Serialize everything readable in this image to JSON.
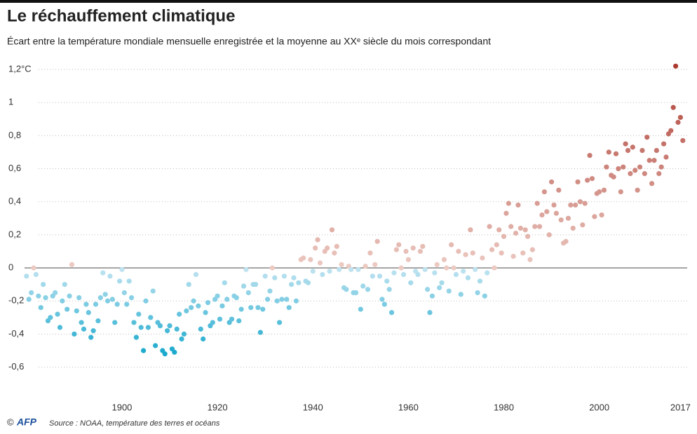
{
  "chart_data": {
    "type": "scatter",
    "title": "Le réchauffement climatique",
    "subtitle": "Écart entre la température mondiale mensuelle enregistrée et la moyenne au XXᵉ siècle du mois correspondant",
    "copyright": "©",
    "logo": "AFP",
    "source": "Source : NOAA, température des terres et océans",
    "xlim": [
      1879,
      2019
    ],
    "ylim": [
      -0.75,
      1.27
    ],
    "xticks": [
      1900,
      1920,
      1940,
      1960,
      1980,
      2000,
      2017
    ],
    "yticks": [
      {
        "value": -0.6,
        "label": "-0,6"
      },
      {
        "value": -0.4,
        "label": "-0,4"
      },
      {
        "value": -0.2,
        "label": "-0,2"
      },
      0,
      {
        "value": 0.2,
        "label": "0,2"
      },
      {
        "value": 0.4,
        "label": "0,4"
      },
      {
        "value": 0.6,
        "label": "0,6"
      },
      {
        "value": 0.8,
        "label": "0,8"
      },
      1,
      {
        "value": 1.2,
        "label": "1,2°C"
      }
    ],
    "grid": true,
    "colors": {
      "cold": "#00a0c8",
      "cool": "#c2e4f1",
      "warm": "#edcbc3",
      "hot": "#a8352b"
    },
    "x": [
      1880,
      1880.5,
      1881,
      1881.5,
      1882,
      1882.5,
      1883,
      1883.5,
      1884,
      1884.5,
      1885,
      1885.5,
      1886,
      1886.5,
      1887,
      1887.5,
      1888,
      1888.5,
      1889,
      1889.5,
      1890,
      1890.5,
      1891,
      1891.5,
      1892,
      1892.5,
      1893,
      1893.5,
      1894,
      1894.5,
      1895,
      1895.5,
      1896,
      1896.5,
      1897,
      1897.5,
      1898,
      1898.5,
      1899,
      1899.5,
      1900,
      1900.5,
      1901,
      1901.5,
      1902,
      1902.5,
      1903,
      1903.5,
      1904,
      1904.5,
      1905,
      1905.5,
      1906,
      1906.5,
      1907,
      1907.5,
      1908,
      1908.5,
      1909,
      1909.5,
      1910,
      1910.5,
      1911,
      1911.5,
      1912,
      1912.5,
      1913,
      1913.5,
      1914,
      1914.5,
      1915,
      1915.5,
      1916,
      1916.5,
      1917,
      1917.5,
      1918,
      1918.5,
      1919,
      1919.5,
      1920,
      1920.5,
      1921,
      1921.5,
      1922,
      1922.5,
      1923,
      1923.5,
      1924,
      1924.5,
      1925,
      1925.5,
      1926,
      1926.5,
      1927,
      1927.5,
      1928,
      1928.5,
      1929,
      1929.5,
      1930,
      1930.5,
      1931,
      1931.5,
      1932,
      1932.5,
      1933,
      1933.5,
      1934,
      1934.5,
      1935,
      1935.5,
      1936,
      1936.5,
      1937,
      1937.5,
      1938,
      1938.5,
      1939,
      1939.5,
      1940,
      1940.5,
      1941,
      1941.5,
      1942,
      1942.5,
      1943,
      1943.5,
      1944,
      1944.5,
      1945,
      1945.5,
      1946,
      1946.5,
      1947,
      1947.5,
      1948,
      1948.5,
      1949,
      1949.5,
      1950,
      1950.5,
      1951,
      1951.5,
      1952,
      1952.5,
      1953,
      1953.5,
      1954,
      1954.5,
      1955,
      1955.5,
      1956,
      1956.5,
      1957,
      1957.5,
      1958,
      1958.5,
      1959,
      1959.5,
      1960,
      1960.5,
      1961,
      1961.5,
      1962,
      1962.5,
      1963,
      1963.5,
      1964,
      1964.5,
      1965,
      1965.5,
      1966,
      1966.5,
      1967,
      1967.5,
      1968,
      1968.5,
      1969,
      1969.5,
      1970,
      1970.5,
      1971,
      1971.5,
      1972,
      1972.5,
      1973,
      1973.5,
      1974,
      1974.5,
      1975,
      1975.5,
      1976,
      1976.5,
      1977,
      1977.5,
      1978,
      1978.5,
      1979,
      1979.5,
      1980,
      1980.5,
      1981,
      1981.5,
      1982,
      1982.5,
      1983,
      1983.5,
      1984,
      1984.5,
      1985,
      1985.5,
      1986,
      1986.5,
      1987,
      1987.5,
      1988,
      1988.5,
      1989,
      1989.5,
      1990,
      1990.5,
      1991,
      1991.5,
      1992,
      1992.5,
      1993,
      1993.5,
      1994,
      1994.5,
      1995,
      1995.5,
      1996,
      1996.5,
      1997,
      1997.5,
      1998,
      1998.5,
      1999,
      1999.5,
      2000,
      2000.5,
      2001,
      2001.5,
      2002,
      2002.5,
      2003,
      2003.5,
      2004,
      2004.5,
      2005,
      2005.5,
      2006,
      2006.5,
      2007,
      2007.5,
      2008,
      2008.5,
      2009,
      2009.5,
      2010,
      2010.5,
      2011,
      2011.5,
      2012,
      2012.5,
      2013,
      2013.5,
      2014,
      2014.5,
      2015,
      2015.5,
      2016,
      2016.5,
      2017,
      2017.5
    ],
    "values": [
      -0.05,
      -0.19,
      -0.15,
      0.0,
      -0.04,
      -0.17,
      -0.24,
      -0.1,
      -0.18,
      -0.32,
      -0.3,
      -0.17,
      -0.15,
      -0.28,
      -0.36,
      -0.2,
      -0.1,
      -0.25,
      -0.17,
      0.02,
      -0.4,
      -0.26,
      -0.18,
      -0.33,
      -0.37,
      -0.22,
      -0.27,
      -0.42,
      -0.38,
      -0.22,
      -0.32,
      -0.18,
      -0.03,
      -0.16,
      -0.2,
      -0.05,
      -0.19,
      -0.33,
      -0.22,
      -0.08,
      -0.01,
      -0.15,
      -0.22,
      -0.08,
      -0.18,
      -0.33,
      -0.42,
      -0.28,
      -0.36,
      -0.5,
      -0.2,
      -0.36,
      -0.3,
      -0.14,
      -0.47,
      -0.33,
      -0.35,
      -0.5,
      -0.52,
      -0.38,
      -0.35,
      -0.49,
      -0.51,
      -0.37,
      -0.28,
      -0.43,
      -0.4,
      -0.26,
      -0.1,
      -0.24,
      -0.2,
      -0.04,
      -0.23,
      -0.37,
      -0.43,
      -0.27,
      -0.21,
      -0.35,
      -0.33,
      -0.19,
      -0.17,
      -0.31,
      -0.23,
      -0.09,
      -0.19,
      -0.33,
      -0.31,
      -0.17,
      -0.18,
      -0.32,
      -0.25,
      -0.11,
      -0.01,
      -0.15,
      -0.24,
      -0.1,
      -0.1,
      -0.24,
      -0.39,
      -0.25,
      -0.05,
      -0.19,
      -0.14,
      0.0,
      -0.06,
      -0.2,
      -0.33,
      -0.19,
      -0.05,
      -0.19,
      -0.24,
      -0.1,
      -0.06,
      -0.2,
      -0.09,
      0.05,
      0.06,
      -0.08,
      -0.09,
      0.05,
      -0.02,
      0.12,
      0.17,
      0.03,
      -0.04,
      0.1,
      0.12,
      -0.02,
      0.23,
      0.09,
      0.13,
      -0.01,
      0.02,
      -0.12,
      -0.13,
      0.01,
      -0.01,
      -0.15,
      -0.15,
      -0.01,
      -0.25,
      -0.11,
      0.01,
      -0.13,
      0.09,
      -0.05,
      0.02,
      0.16,
      -0.05,
      -0.19,
      -0.22,
      -0.08,
      -0.13,
      -0.27,
      -0.03,
      0.11,
      0.14,
      0.0,
      -0.04,
      0.1,
      0.05,
      -0.09,
      0.12,
      -0.02,
      -0.04,
      0.1,
      0.13,
      -0.01,
      -0.13,
      -0.27,
      -0.17,
      -0.03,
      0.02,
      -0.12,
      -0.09,
      0.05,
      0.0,
      -0.14,
      0.14,
      0.0,
      -0.04,
      0.1,
      -0.16,
      -0.02,
      0.08,
      -0.06,
      0.23,
      0.09,
      -0.01,
      -0.15,
      -0.08,
      0.06,
      -0.17,
      -0.03,
      0.25,
      0.11,
      0.0,
      0.14,
      0.23,
      0.09,
      0.19,
      0.33,
      0.39,
      0.25,
      0.07,
      0.21,
      0.38,
      0.24,
      0.09,
      0.23,
      0.19,
      0.05,
      0.11,
      0.25,
      0.39,
      0.25,
      0.32,
      0.46,
      0.34,
      0.2,
      0.52,
      0.38,
      0.33,
      0.47,
      0.29,
      0.15,
      0.16,
      0.3,
      0.38,
      0.24,
      0.38,
      0.52,
      0.4,
      0.26,
      0.39,
      0.53,
      0.68,
      0.54,
      0.31,
      0.45,
      0.46,
      0.32,
      0.47,
      0.61,
      0.7,
      0.56,
      0.55,
      0.69,
      0.6,
      0.46,
      0.61,
      0.75,
      0.71,
      0.57,
      0.73,
      0.59,
      0.47,
      0.61,
      0.71,
      0.57,
      0.79,
      0.65,
      0.51,
      0.65,
      0.71,
      0.57,
      0.61,
      0.75,
      0.67,
      0.81,
      0.83,
      0.97,
      1.22,
      0.88,
      0.91,
      0.77
    ]
  }
}
